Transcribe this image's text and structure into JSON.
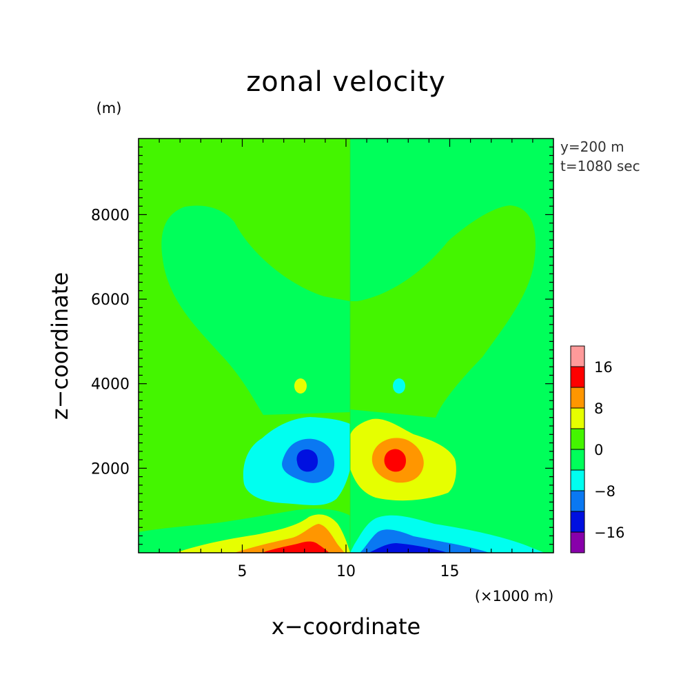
{
  "chart_data": {
    "type": "heatmap",
    "title": "zonal velocity",
    "xlabel": "x−coordinate",
    "ylabel": "z−coordinate",
    "x_unit": "(×1000 m)",
    "y_unit": "(m)",
    "xlim": [
      0,
      20
    ],
    "ylim": [
      0,
      9800
    ],
    "x_ticks": [
      5,
      10,
      15
    ],
    "x_tick_labels": [
      "5",
      "10",
      "15"
    ],
    "y_ticks": [
      2000,
      4000,
      6000,
      8000
    ],
    "y_tick_labels": [
      "2000",
      "4000",
      "6000",
      "8000"
    ],
    "annotations": [
      "y=200 m",
      "t=1080 sec"
    ],
    "colorbar": {
      "levels": [
        -20,
        -16,
        -12,
        -8,
        -4,
        0,
        4,
        8,
        12,
        16,
        20
      ],
      "colors": [
        "#8800aa",
        "#0010e0",
        "#0a78f2",
        "#00fff0",
        "#00ff5a",
        "#44f500",
        "#e6ff00",
        "#ff9600",
        "#ff0000",
        "#ff9a9a"
      ],
      "tick_values": [
        -16,
        -8,
        0,
        8,
        16
      ],
      "tick_labels": [
        "−16",
        "−8",
        "0",
        "8",
        "16"
      ]
    },
    "background_level": "0 to 4 (left half) / -4 to 0 (right half)",
    "features": [
      {
        "name": "negative core",
        "x": 8.2,
        "z": 2300,
        "min_value": -14
      },
      {
        "name": "positive core",
        "x": 12.3,
        "z": 2300,
        "max_value": 14
      },
      {
        "name": "positive surface jet",
        "x": 8.2,
        "z": 100,
        "max_value": 14
      },
      {
        "name": "negative surface jet",
        "x": 12.3,
        "z": 100,
        "min_value": -14
      }
    ]
  }
}
